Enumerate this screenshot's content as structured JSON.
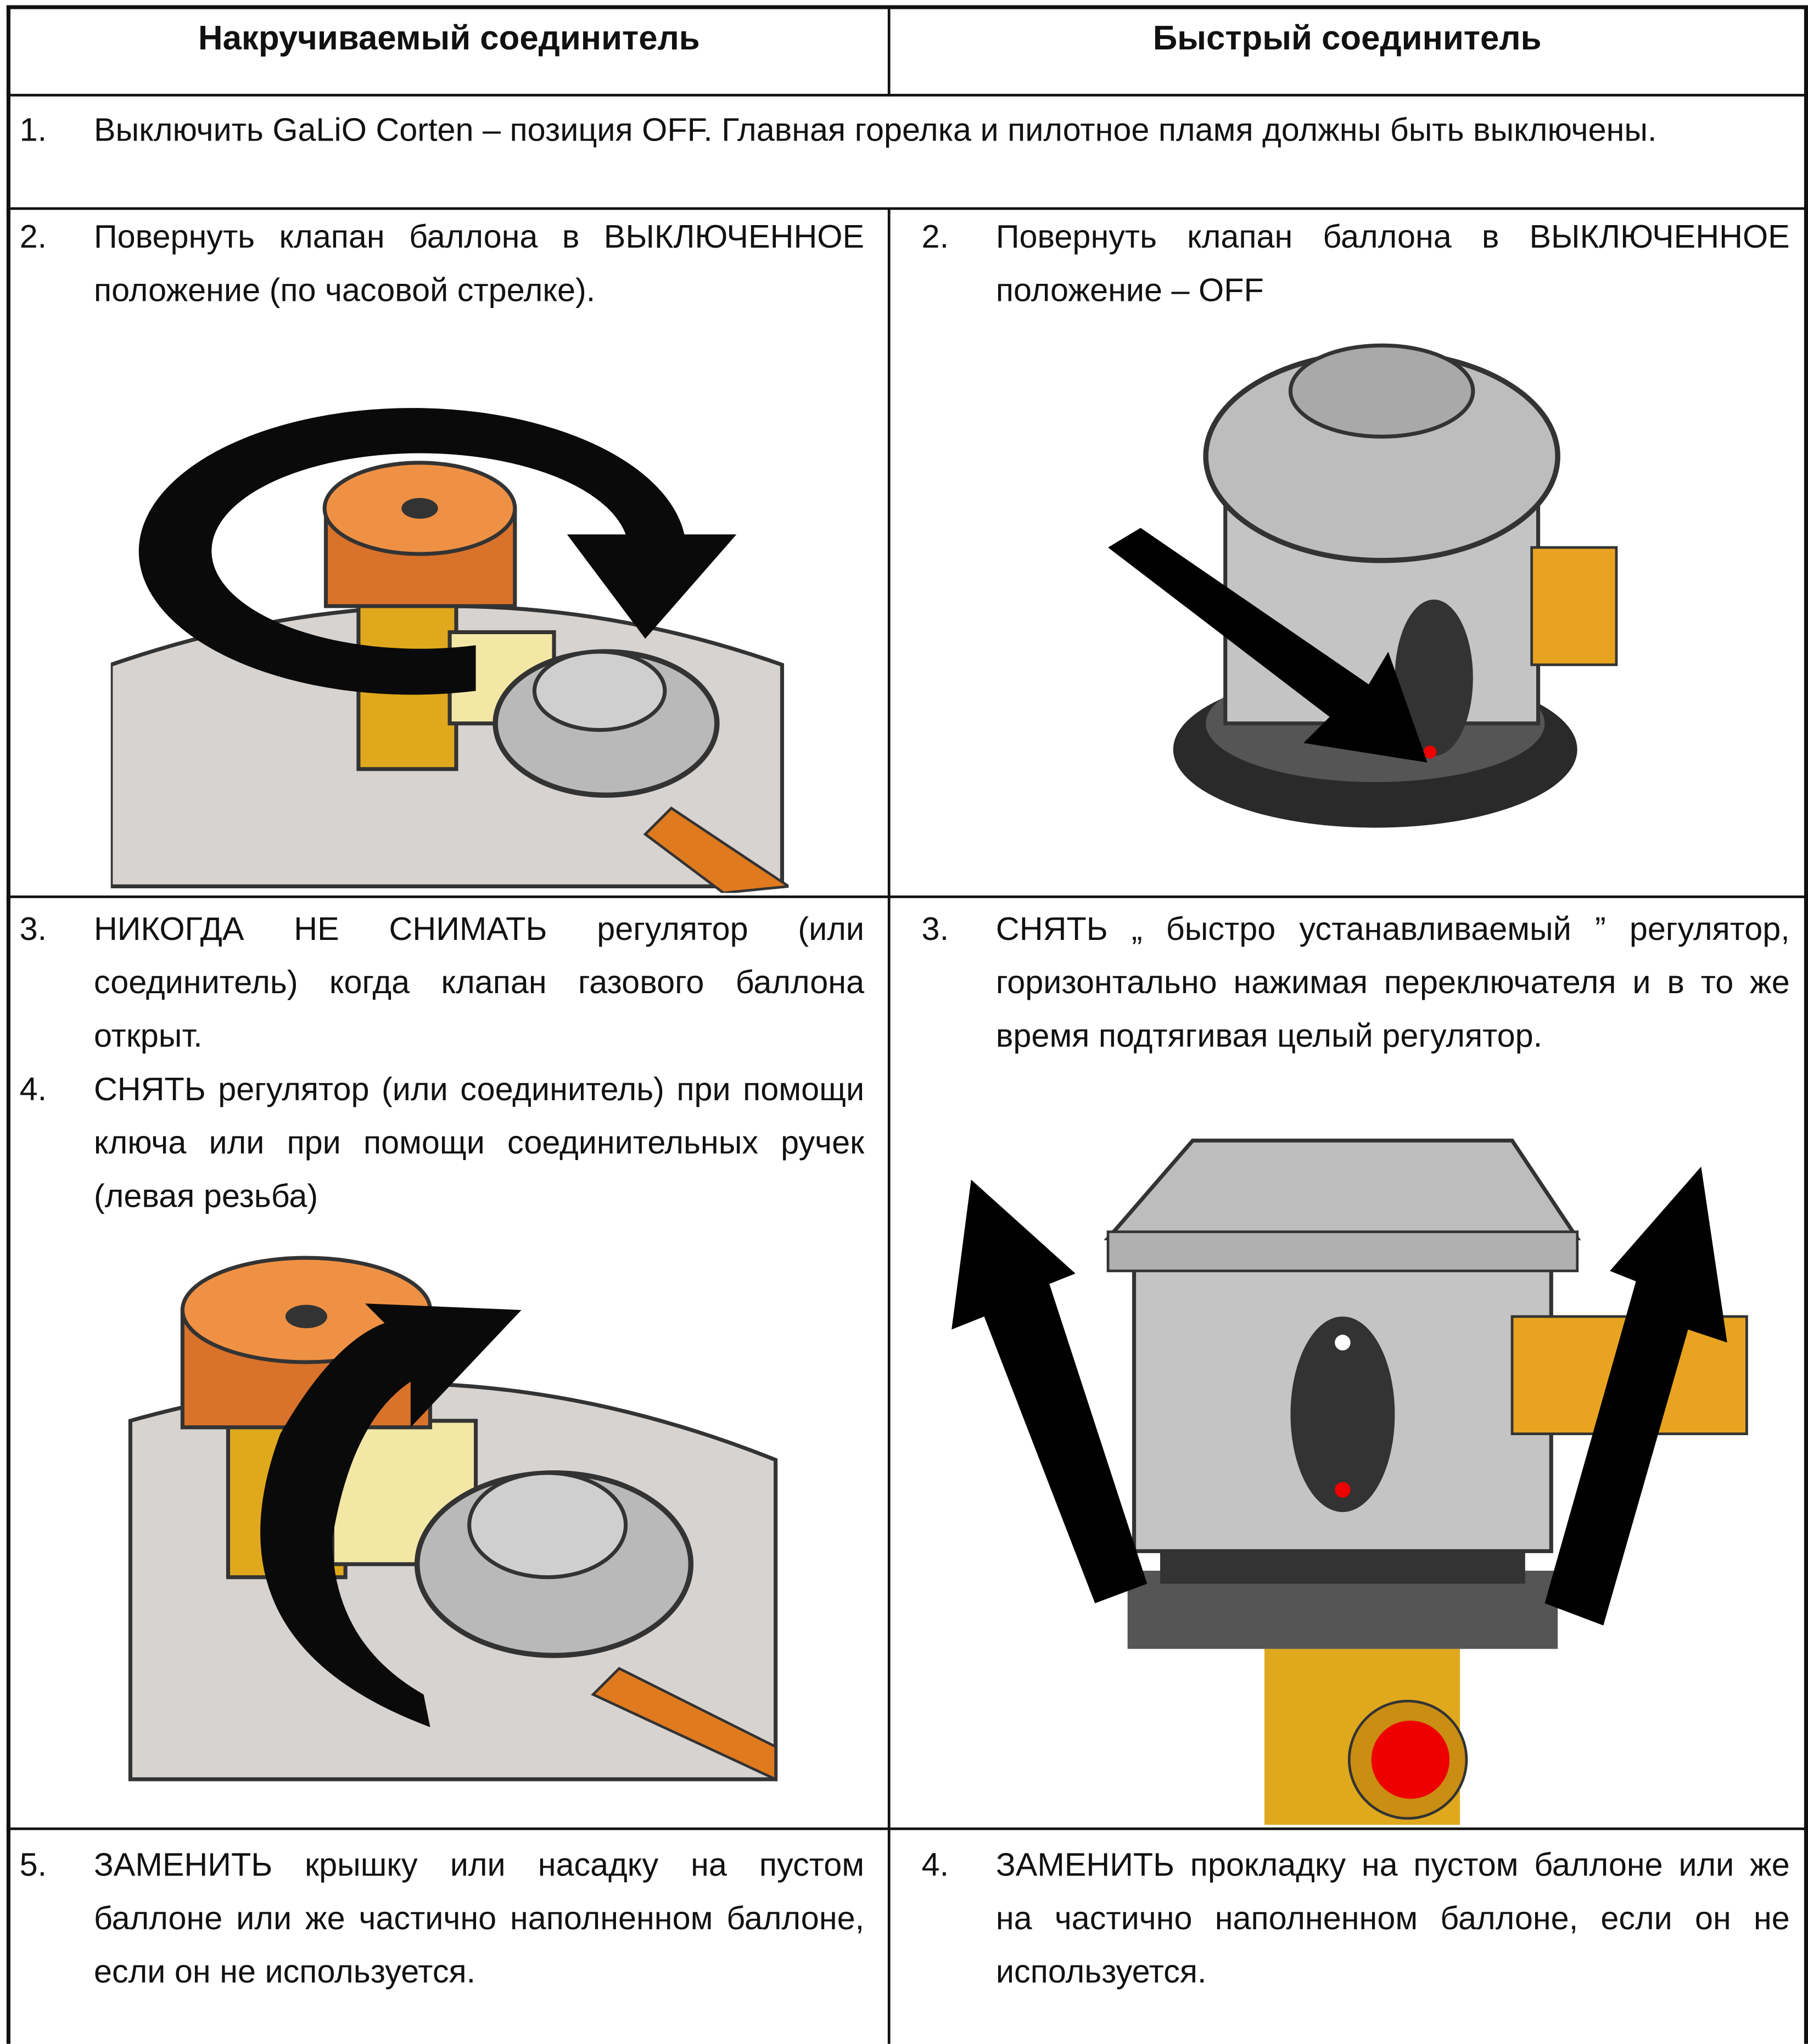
{
  "header": {
    "left": "Накручиваемый соединитель",
    "right": "Быстрый соединитель"
  },
  "rows": [
    {
      "full": [
        {
          "number": "1.",
          "text": "Выключить GaLiO Corten – позиция OFF. Главная горелка и пилотное пламя должны быть выключены."
        }
      ]
    },
    {
      "left": [
        {
          "number": "2.",
          "text": "Повернуть клапан баллона в ВЫКЛЮЧЕННОЕ положение (по часовой стрелке)."
        }
      ],
      "right": [
        {
          "number": "2.",
          "text": "Повернуть клапан баллона в ВЫКЛЮЧЕННОЕ положение – OFF"
        }
      ]
    },
    {
      "left": [
        {
          "number": "3.",
          "text": "НИКОГДА НЕ СНИМАТЬ регулятор (или соединитель) когда клапан газового баллона открыт."
        },
        {
          "number": "4.",
          "text": "СНЯТЬ регулятор (или соединитель) при помощи ключа или при помощи соединительных ручек (левая резьба)"
        }
      ],
      "right": [
        {
          "number": "3.",
          "text": "СНЯТЬ „ быстро устанавливаемый ” регулятор, горизонтально нажимая переключателя и в то же время подтягивая целый регулятор."
        }
      ]
    },
    {
      "left": [
        {
          "number": "5.",
          "text": "ЗАМЕНИТЬ крышку или насадку на пустом баллоне или же частично наполненном баллоне, если он не используется."
        }
      ],
      "right": [
        {
          "number": "4.",
          "text": "ЗАМЕНИТЬ прокладку на пустом баллоне или же на частично наполненном баллоне, если он не используется."
        }
      ]
    }
  ]
}
